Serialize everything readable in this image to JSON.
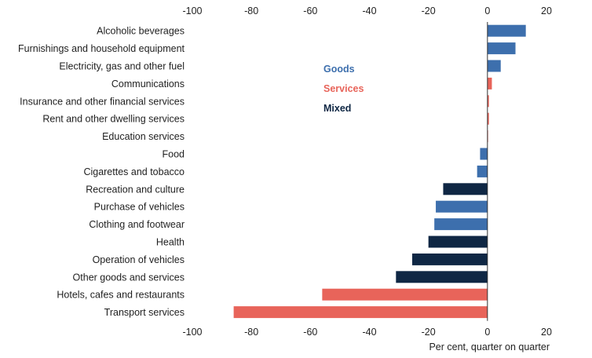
{
  "chart_data": {
    "type": "bar",
    "orientation": "horizontal",
    "categories": [
      "Alcoholic beverages",
      "Furnishings and household equipment",
      "Electricity, gas and other fuel",
      "Communications",
      "Insurance and other financial services",
      "Rent and other dwelling services",
      "Education services",
      "Food",
      "Cigarettes and tobacco",
      "Recreation and culture",
      "Purchase of vehicles",
      "Clothing and footwear",
      "Health",
      "Operation of vehicles",
      "Other goods and services",
      "Hotels, cafes and restaurants",
      "Transport services"
    ],
    "values": [
      13,
      9.5,
      4.5,
      1.5,
      0.5,
      0.5,
      0.2,
      -2.5,
      -3.5,
      -15,
      -17.5,
      -18,
      -20,
      -25.5,
      -31,
      -56,
      -86
    ],
    "groups": [
      "Goods",
      "Goods",
      "Goods",
      "Services",
      "Services",
      "Services",
      "Services",
      "Goods",
      "Goods",
      "Mixed",
      "Goods",
      "Goods",
      "Mixed",
      "Mixed",
      "Mixed",
      "Services",
      "Services"
    ],
    "legend": [
      {
        "name": "Goods",
        "color": "#3d6fad"
      },
      {
        "name": "Services",
        "color": "#e8645a"
      },
      {
        "name": "Mixed",
        "color": "#0f2744"
      }
    ],
    "legend_position": "center-left",
    "xlim": [
      -100,
      20
    ],
    "xticks": [
      "-100",
      "-80",
      "-60",
      "-40",
      "-20",
      "0",
      "20"
    ],
    "xlabel": "Per cent, quarter on quarter",
    "ylabel": "",
    "title": "",
    "grid": false
  }
}
